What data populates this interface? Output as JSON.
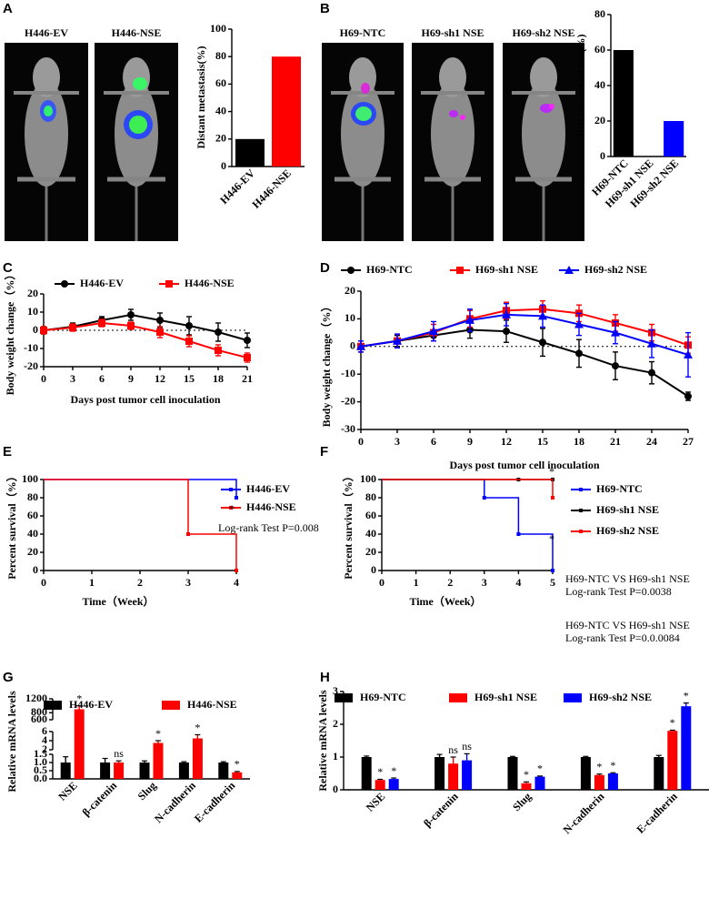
{
  "mouse_images": [
    {
      "label": "H446-EV"
    },
    {
      "label": "H446-NSE"
    },
    {
      "label": "H69-NTC"
    },
    {
      "label": "H69-sh1 NSE"
    },
    {
      "label": "H69-sh2 NSE"
    }
  ],
  "chart_data": [
    {
      "type": "bar",
      "panel": "A",
      "ylabel": "Distant metastasis(%)",
      "categories": [
        "H446-EV",
        "H446-NSE"
      ],
      "values": [
        20,
        80
      ],
      "colors": [
        "#000000",
        "#ff0000"
      ],
      "ylim": [
        0,
        100
      ],
      "yticks": [
        0,
        20,
        40,
        60,
        80,
        100
      ]
    },
    {
      "type": "bar",
      "panel": "B",
      "ylabel": "Distant metastasis(%)",
      "categories": [
        "H69-NTC",
        "H69-sh1 NSE",
        "H69-sh2 NSE"
      ],
      "values": [
        60,
        0,
        20
      ],
      "colors": [
        "#000000",
        "#ff0000",
        "#0000ff"
      ],
      "ylim": [
        0,
        80
      ],
      "yticks": [
        0,
        20,
        40,
        60,
        80
      ]
    },
    {
      "type": "line",
      "panel": "C",
      "ylabel": "Body weight change（%）",
      "xlabel": "Days post tumor cell inoculation",
      "zero_line": true,
      "x": [
        0,
        3,
        6,
        9,
        12,
        15,
        18,
        21
      ],
      "xlim": [
        0,
        21
      ],
      "xticks": [
        0,
        3,
        6,
        9,
        12,
        15,
        18,
        21
      ],
      "ylim": [
        -20,
        20
      ],
      "yticks": [
        -20,
        -10,
        0,
        10,
        20
      ],
      "series": [
        {
          "name": "H446-EV",
          "color": "#000000",
          "marker": "circle",
          "values": [
            0,
            2,
            5.5,
            8.5,
            5.5,
            2.5,
            -1,
            -5.5
          ],
          "errors": [
            2,
            2,
            2,
            3,
            4,
            5,
            5,
            4
          ]
        },
        {
          "name": "H446-NSE",
          "color": "#ff0000",
          "marker": "square",
          "values": [
            0,
            1.5,
            4,
            2.5,
            -1,
            -6,
            -11,
            -15
          ],
          "errors": [
            2,
            2,
            2,
            2,
            3,
            3,
            3,
            2.5
          ]
        }
      ]
    },
    {
      "type": "line",
      "panel": "D",
      "ylabel": "Body weight change（%）",
      "xlabel": "Days post tumor cell inoculation",
      "zero_line": true,
      "x": [
        0,
        3,
        6,
        9,
        12,
        15,
        18,
        21,
        24,
        27
      ],
      "xlim": [
        0,
        27
      ],
      "xticks": [
        0,
        3,
        6,
        9,
        12,
        15,
        18,
        21,
        24,
        27
      ],
      "ylim": [
        -30,
        20
      ],
      "yticks": [
        -30,
        -20,
        -10,
        0,
        10,
        20
      ],
      "series": [
        {
          "name": "H69-NTC",
          "color": "#000000",
          "marker": "circle",
          "values": [
            0,
            2,
            4,
            6,
            5.5,
            1.5,
            -2.5,
            -7,
            -9.5,
            -18
          ],
          "errors": [
            2,
            2,
            2,
            3,
            4,
            5,
            5,
            5,
            4,
            1.5
          ]
        },
        {
          "name": "H69-sh1 NSE",
          "color": "#ff0000",
          "marker": "square",
          "values": [
            0,
            2,
            5,
            10,
            13,
            13.5,
            12,
            8.5,
            5,
            0.5
          ],
          "errors": [
            2,
            2.5,
            3,
            3,
            3,
            3,
            3,
            3,
            3,
            3
          ]
        },
        {
          "name": "H69-sh2 NSE",
          "color": "#0000ff",
          "marker": "triangle",
          "values": [
            0,
            2,
            5.5,
            9.5,
            11.5,
            11,
            8,
            5,
            1,
            -3
          ],
          "errors": [
            2,
            2.5,
            3.5,
            4,
            4,
            4,
            4,
            4,
            5,
            8
          ]
        }
      ]
    },
    {
      "type": "step",
      "panel": "E",
      "ylabel": "Percent survival（%）",
      "xlabel": "Time（Week）",
      "xlim": [
        0,
        4
      ],
      "xticks": [
        0,
        1,
        2,
        3,
        4
      ],
      "ylim": [
        0,
        100
      ],
      "yticks": [
        0,
        20,
        40,
        60,
        80,
        100
      ],
      "series": [
        {
          "name": "H446-EV",
          "color": "#0000ff",
          "x": [
            0,
            4
          ],
          "values": [
            100,
            80
          ]
        },
        {
          "name": "H446-NSE",
          "color": "#ff0000",
          "x": [
            0,
            3,
            4
          ],
          "values": [
            100,
            40,
            0
          ]
        }
      ],
      "annotations": [
        "*"
      ],
      "notes": [
        "Log-rank Test P=0.008"
      ]
    },
    {
      "type": "step",
      "panel": "F",
      "ylabel": "Percent survival（%）",
      "xlabel": "Time（Week）",
      "xlim": [
        0,
        5
      ],
      "xticks": [
        0,
        1,
        2,
        3,
        4,
        5
      ],
      "ylim": [
        0,
        100
      ],
      "yticks": [
        0,
        20,
        40,
        60,
        80,
        100
      ],
      "series": [
        {
          "name": "H69-NTC",
          "color": "#0000ff",
          "x": [
            0,
            3,
            4,
            5
          ],
          "values": [
            100,
            80,
            40,
            0
          ]
        },
        {
          "name": "H69-sh1 NSE",
          "color": "#000000",
          "x": [
            0,
            4,
            5
          ],
          "values": [
            100,
            100,
            100
          ]
        },
        {
          "name": "H69-sh2 NSE",
          "color": "#ff0000",
          "x": [
            0,
            5
          ],
          "values": [
            100,
            80
          ]
        }
      ],
      "annotations": [
        "*",
        "*"
      ],
      "notes": [
        "H69-NTC VS H69-sh1 NSE",
        "Log-rank Test P=0.0038",
        "H69-NTC VS H69-sh1 NSE",
        "Log-rank Test P=0.0.0084"
      ]
    },
    {
      "type": "bar",
      "panel": "G",
      "ylabel": "Relative mRNA levels",
      "categories": [
        "NSE",
        "β-catenin",
        "Slug",
        "N-cadherin",
        "E-cadherin"
      ],
      "ysegments": [
        {
          "ylim": [
            0,
            1.5
          ],
          "yticks": [
            {
              "value": 0,
              "label": "0.0"
            },
            {
              "value": 0.5,
              "label": "0.5"
            },
            {
              "value": 1,
              "label": "1.0"
            },
            {
              "value": 1.5,
              "label": "1.5"
            }
          ]
        },
        {
          "ylim": [
            2,
            6
          ],
          "yticks": [
            2,
            4,
            6
          ]
        },
        {
          "ylim": [
            600,
            1200
          ],
          "yticks": [
            600,
            800,
            1200
          ]
        }
      ],
      "series": [
        {
          "name": "H446-EV",
          "color": "#000000",
          "values": [
            1,
            1,
            1,
            1,
            1
          ],
          "errors": [
            0.35,
            0.25,
            0.1,
            0.05,
            0.05
          ],
          "significance": [
            null,
            null,
            null,
            null,
            null
          ]
        },
        {
          "name": "H446-NSE",
          "color": "#ff0000",
          "values": [
            900,
            1,
            3.5,
            4.5,
            0.4
          ],
          "errors": [
            100,
            0.1,
            0.5,
            0.8,
            0.05
          ],
          "significance": [
            "*",
            "ns",
            "*",
            "*",
            "*"
          ]
        }
      ]
    },
    {
      "type": "bar",
      "panel": "H",
      "ylabel": "Relative mRNA levels",
      "categories": [
        "NSE",
        "β-catenin",
        "Slug",
        "N-cadherin",
        "E-cadherin"
      ],
      "ylim": [
        0,
        3
      ],
      "yticks": [
        0,
        1,
        2,
        3
      ],
      "series": [
        {
          "name": "H69-NTC",
          "color": "#000000",
          "values": [
            1,
            1,
            1,
            1,
            1
          ],
          "errors": [
            0.03,
            0.08,
            0.02,
            0.02,
            0.05
          ],
          "significance": [
            null,
            null,
            null,
            null,
            null
          ]
        },
        {
          "name": "H69-sh1 NSE",
          "color": "#ff0000",
          "values": [
            0.3,
            0.8,
            0.2,
            0.45,
            1.8
          ],
          "errors": [
            0.02,
            0.2,
            0.04,
            0.03,
            0.02
          ],
          "significance": [
            "*",
            "ns",
            "*",
            "*",
            "*"
          ]
        },
        {
          "name": "H69-sh2 NSE",
          "color": "#0000ff",
          "values": [
            0.33,
            0.9,
            0.4,
            0.5,
            2.55
          ],
          "errors": [
            0.03,
            0.2,
            0.02,
            0.02,
            0.1
          ],
          "significance": [
            "*",
            "ns",
            "*",
            "*",
            "*"
          ]
        }
      ]
    }
  ]
}
